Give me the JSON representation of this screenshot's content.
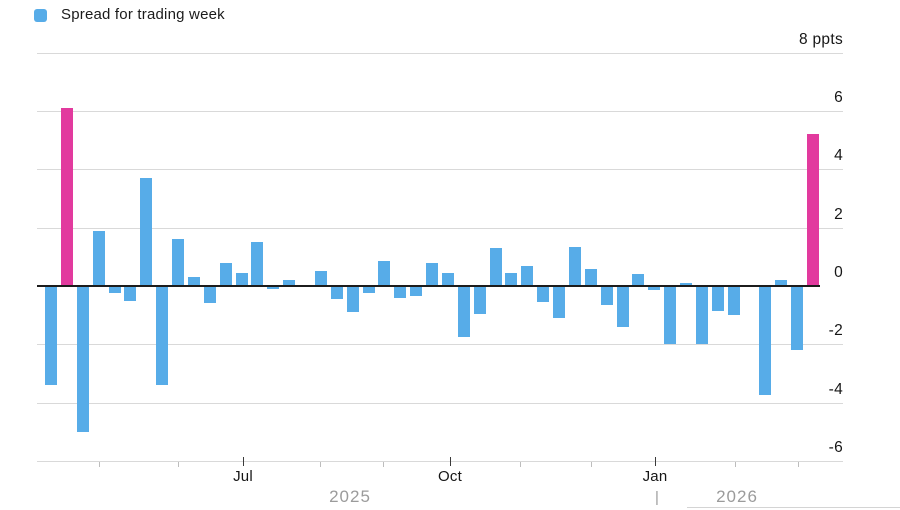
{
  "legend": {
    "label": "Spread for trading week",
    "swatch_color": "#57ace8"
  },
  "chart_data": {
    "type": "bar",
    "title": "Spread for trading week",
    "unit": "ppts",
    "ylim": [
      -6,
      8
    ],
    "grid": true,
    "yticks": {
      "values": [
        8,
        6,
        4,
        2,
        0,
        -2,
        -4,
        -6
      ],
      "labels": [
        "8 ppts",
        "6",
        "4",
        "2",
        "0",
        "-2",
        "-4",
        "-6"
      ]
    },
    "xticks": {
      "major_labels": [
        "Jul",
        "Oct",
        "Jan"
      ],
      "years": [
        "2025",
        "2026"
      ],
      "year_divider": "|"
    },
    "legend_position": "top-left",
    "ylabel_position": "right",
    "series": [
      {
        "name": "Spread for trading week",
        "frequency_hint": "one bar per trading week",
        "values": [
          -3.4,
          6.1,
          -5.0,
          1.9,
          -0.25,
          -0.5,
          3.7,
          -3.4,
          1.6,
          0.3,
          -0.6,
          0.8,
          0.45,
          1.5,
          -0.1,
          0.2,
          0.0,
          0.5,
          -0.45,
          -0.9,
          -0.25,
          0.85,
          -0.4,
          -0.35,
          0.8,
          0.45,
          -1.75,
          -0.95,
          1.3,
          0.45,
          0.7,
          -0.55,
          -1.1,
          1.35,
          0.6,
          -0.65,
          -1.4,
          0.4,
          -0.15,
          -2.0,
          0.1,
          -2.0,
          -0.85,
          -1.0,
          -0.05,
          -3.75,
          0.2,
          -2.2,
          5.2
        ],
        "highlight_indices": [
          1,
          48
        ],
        "color": "#57ace8",
        "highlight_color": "#e23a9e"
      }
    ],
    "colors": {
      "bar": "#57ace8",
      "highlight": "#e23a9e",
      "gridline": "#d9d9d9",
      "zero_line": "#1c1c1c",
      "axis_text": "#161616",
      "muted_text": "#9b9b9b"
    }
  }
}
